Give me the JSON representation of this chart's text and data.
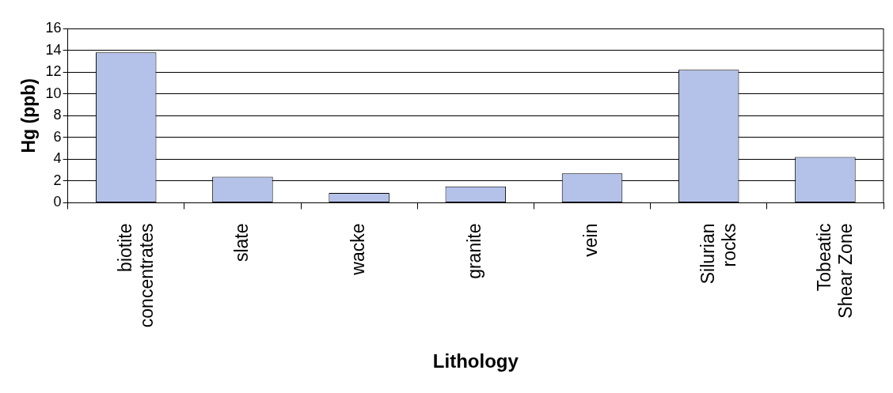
{
  "chart_data": {
    "type": "bar",
    "xlabel": "Lithology",
    "ylabel": "Hg (ppb)",
    "categories": [
      "biotite concentrates",
      "slate",
      "wacke",
      "granite",
      "vein",
      "Silurian rocks",
      "Tobeatic Shear Zone"
    ],
    "values": [
      13.8,
      2.4,
      0.9,
      1.5,
      2.7,
      12.2,
      4.2
    ],
    "color": "#b4c2ea",
    "ylim": [
      0,
      16
    ],
    "yticks": [
      0,
      2,
      4,
      6,
      8,
      10,
      12,
      14,
      16
    ],
    "grid": "y",
    "legend": false
  }
}
